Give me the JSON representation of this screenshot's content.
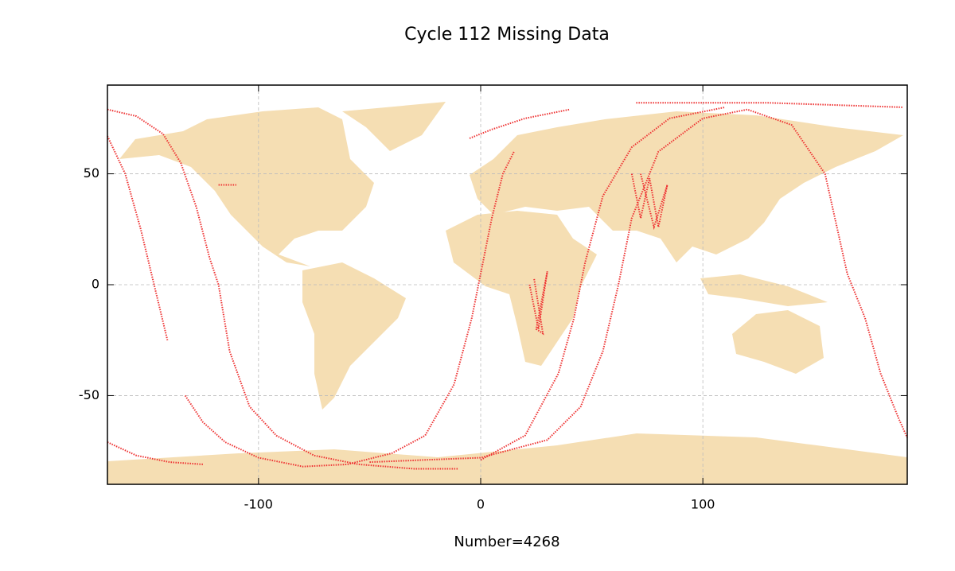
{
  "chart_data": {
    "type": "line",
    "title": "Cycle 112 Missing Data",
    "x_label": "Number=4268",
    "xlim": [
      -168,
      192
    ],
    "ylim": [
      -90,
      90
    ],
    "xticks": [
      -100,
      0,
      100
    ],
    "yticks": [
      -50,
      0,
      50
    ],
    "grid": true,
    "series": [
      {
        "color": "#ee3333",
        "x": [
          -168,
          -160,
          -153,
          -147,
          -141
        ],
        "values": [
          67,
          50,
          25,
          0,
          -25
        ]
      },
      {
        "color": "#ee3333",
        "x": [
          -168,
          -155,
          -143,
          -135,
          -128,
          -122,
          -118,
          -113,
          -104,
          -92,
          -75,
          -55,
          -30,
          -10
        ],
        "values": [
          79,
          76,
          68,
          55,
          35,
          12,
          0,
          -30,
          -55,
          -68,
          -77,
          -81,
          -83,
          -83
        ]
      },
      {
        "color": "#ee3333",
        "x": [
          -133,
          -125,
          -115,
          -100,
          -80,
          -60,
          -40,
          -25,
          -12,
          -4,
          0,
          5,
          10,
          15
        ],
        "values": [
          -50,
          -62,
          -71,
          -78,
          -82,
          -81,
          -76,
          -68,
          -45,
          -15,
          5,
          30,
          50,
          60
        ]
      },
      {
        "color": "#ee3333",
        "x": [
          -168,
          -155,
          -140,
          -125
        ],
        "values": [
          -71,
          -77,
          -80,
          -81
        ]
      },
      {
        "color": "#ee3333",
        "x": [
          0,
          20,
          35,
          42,
          47,
          55,
          68,
          85,
          110
        ],
        "values": [
          -79,
          -68,
          -40,
          -15,
          10,
          40,
          62,
          75,
          80
        ]
      },
      {
        "color": "#ee3333",
        "x": [
          -50,
          0,
          30,
          45,
          55,
          62,
          68,
          80,
          100,
          120,
          140,
          155,
          165,
          173,
          180,
          188,
          192
        ],
        "values": [
          -80,
          -78,
          -70,
          -55,
          -30,
          0,
          30,
          60,
          75,
          79,
          72,
          50,
          5,
          -15,
          -40,
          -60,
          -69
        ]
      },
      {
        "color": "#ee3333",
        "x": [
          -5,
          5,
          20,
          40
        ],
        "values": [
          66,
          70,
          75,
          79
        ]
      },
      {
        "color": "#ee3333",
        "x": [
          70,
          100,
          130,
          160,
          190
        ],
        "values": [
          82,
          82,
          82,
          81,
          80
        ]
      },
      {
        "color": "#ee3333",
        "x": [
          68,
          72,
          76,
          80,
          84,
          78,
          72
        ],
        "values": [
          50,
          30,
          48,
          26,
          45,
          26,
          50
        ]
      },
      {
        "color": "#ee3333",
        "x": [
          22,
          26,
          30,
          25,
          28,
          24
        ],
        "values": [
          0,
          -20,
          6,
          -20,
          -22,
          3
        ]
      },
      {
        "color": "#ee3333",
        "x": [
          -118,
          -110
        ],
        "values": [
          45,
          45
        ]
      }
    ]
  }
}
